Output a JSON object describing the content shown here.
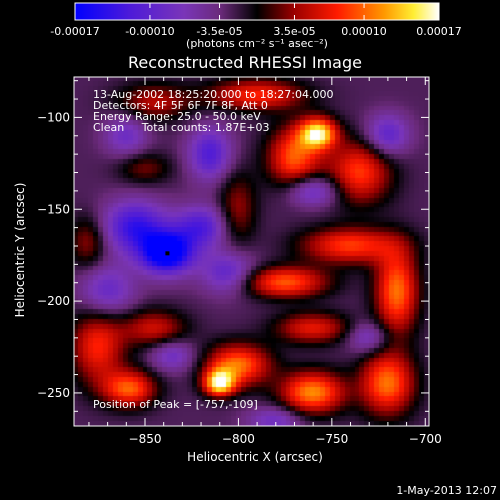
{
  "chart_data": {
    "type": "heatmap",
    "title": "Reconstructed RHESSI Image",
    "xlabel": "Heliocentric X (arcsec)",
    "ylabel": "Heliocentric Y (arcsec)",
    "xlim": [
      -888,
      -698
    ],
    "ylim": [
      -268,
      -78
    ],
    "x_ticks": [
      -850,
      -800,
      -750,
      -700
    ],
    "y_ticks": [
      -250,
      -200,
      -150,
      -100
    ],
    "colorbar": {
      "min": -0.00017,
      "max": 0.00017,
      "tick_values": [
        -0.00017,
        -0.0001,
        -3.5e-05,
        3.5e-05,
        0.0001,
        0.00017
      ],
      "tick_labels": [
        "-0.00017",
        "-0.00010",
        "-3.5e-05",
        "3.5e-05",
        "0.00010",
        "0.00017"
      ],
      "units_label": "(photons cm⁻² s⁻¹ asec⁻²)"
    },
    "annotations": [
      "13-Aug-2002 18:25:20.000 to 18:27:04.000",
      "Detectors: 4F 5F 6F 7F 8F, Att 0",
      "Energy Range: 25.0 - 50.0 keV",
      "Clean     Total counts: 1.87E+03"
    ],
    "peak_label": "Position of Peak = [-757,-109]",
    "marked_point": {
      "x": -838,
      "y": -174
    },
    "sources": [
      {
        "x": -757,
        "y": -109,
        "value": 0.00017,
        "sx": 7,
        "sy": 6
      },
      {
        "x": -770,
        "y": -122,
        "value": 0.00012,
        "sx": 10,
        "sy": 12
      },
      {
        "x": -735,
        "y": -130,
        "value": 0.00011,
        "sx": 12,
        "sy": 12
      },
      {
        "x": -790,
        "y": -88,
        "value": 0.0001,
        "sx": 18,
        "sy": 6
      },
      {
        "x": -845,
        "y": -92,
        "value": 7e-05,
        "sx": 14,
        "sy": 7
      },
      {
        "x": -800,
        "y": -150,
        "value": 6e-05,
        "sx": 7,
        "sy": 14
      },
      {
        "x": -740,
        "y": -170,
        "value": 0.00011,
        "sx": 18,
        "sy": 7
      },
      {
        "x": -775,
        "y": -190,
        "value": 0.00012,
        "sx": 16,
        "sy": 6
      },
      {
        "x": -715,
        "y": -195,
        "value": 0.00013,
        "sx": 8,
        "sy": 16
      },
      {
        "x": -760,
        "y": -215,
        "value": 9e-05,
        "sx": 14,
        "sy": 6
      },
      {
        "x": -875,
        "y": -225,
        "value": 0.0001,
        "sx": 10,
        "sy": 14
      },
      {
        "x": -845,
        "y": -215,
        "value": 8e-05,
        "sx": 12,
        "sy": 7
      },
      {
        "x": -800,
        "y": -235,
        "value": 0.00013,
        "sx": 12,
        "sy": 8
      },
      {
        "x": -810,
        "y": -245,
        "value": 0.00017,
        "sx": 6,
        "sy": 5
      },
      {
        "x": -858,
        "y": -248,
        "value": 0.00012,
        "sx": 10,
        "sy": 7
      },
      {
        "x": -760,
        "y": -250,
        "value": 0.00014,
        "sx": 12,
        "sy": 8
      },
      {
        "x": -720,
        "y": -245,
        "value": 0.00013,
        "sx": 10,
        "sy": 12
      },
      {
        "x": -880,
        "y": -168,
        "value": 6e-05,
        "sx": 7,
        "sy": 10
      },
      {
        "x": -850,
        "y": -128,
        "value": 5e-05,
        "sx": 10,
        "sy": 6
      },
      {
        "x": -838,
        "y": -174,
        "value": -0.00017,
        "sx": 10,
        "sy": 8
      },
      {
        "x": -855,
        "y": -160,
        "value": -0.00011,
        "sx": 12,
        "sy": 10
      },
      {
        "x": -820,
        "y": -160,
        "value": -9e-05,
        "sx": 10,
        "sy": 8
      },
      {
        "x": -805,
        "y": -185,
        "value": -8e-05,
        "sx": 10,
        "sy": 8
      },
      {
        "x": -815,
        "y": -120,
        "value": -9e-05,
        "sx": 8,
        "sy": 10
      },
      {
        "x": -760,
        "y": -140,
        "value": -8e-05,
        "sx": 10,
        "sy": 6
      },
      {
        "x": -720,
        "y": -110,
        "value": -8e-05,
        "sx": 8,
        "sy": 8
      },
      {
        "x": -870,
        "y": -195,
        "value": -7e-05,
        "sx": 10,
        "sy": 10
      },
      {
        "x": -835,
        "y": -230,
        "value": -6e-05,
        "sx": 8,
        "sy": 6
      },
      {
        "x": -730,
        "y": -220,
        "value": -6e-05,
        "sx": 8,
        "sy": 6
      },
      {
        "x": -860,
        "y": -110,
        "value": -6e-05,
        "sx": 8,
        "sy": 8
      },
      {
        "x": -780,
        "y": -265,
        "value": -6e-05,
        "sx": 10,
        "sy": 5
      }
    ]
  },
  "footer": {
    "timestamp": "1-May-2013 12:07"
  }
}
